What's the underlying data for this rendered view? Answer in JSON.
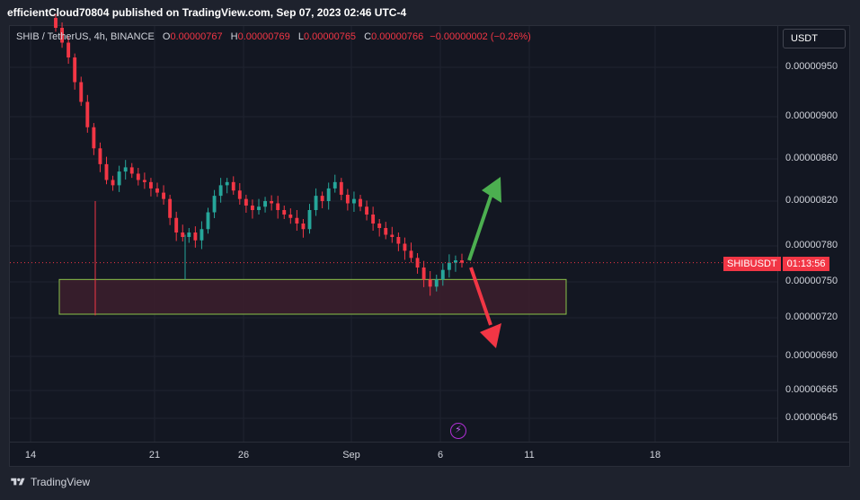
{
  "header": {
    "publisher": "efficientCloud70804 published on TradingView.com, Sep 07, 2023 02:46 UTC-4"
  },
  "legend": {
    "symbol": "SHIB / TetherUS, 4h, BINANCE",
    "o_label": "O",
    "o_value": "0.00000767",
    "h_label": "H",
    "h_value": "0.00000769",
    "l_label": "L",
    "l_value": "0.00000765",
    "c_label": "C",
    "c_value": "0.00000766",
    "change": "−0.00000002 (−0.26%)"
  },
  "currency": "USDT",
  "price_tag": {
    "symbol": "SHIBUSDT",
    "countdown": "01:13:56"
  },
  "footer": {
    "brand": "TradingView"
  },
  "colors": {
    "up": "#26a69a",
    "down": "#f23645",
    "zone_fill": "#3d1f2d",
    "zone_border": "#8bc34a",
    "arrow_up": "#4caf50",
    "arrow_down": "#f23645"
  },
  "chart_data": {
    "type": "candlestick",
    "y_axis_labels": [
      "0.00000950",
      "0.00000900",
      "0.00000860",
      "0.00000820",
      "0.00000780",
      "0.00000750",
      "0.00000720",
      "0.00000690",
      "0.00000665",
      "0.00000645"
    ],
    "x_axis_labels": [
      "14",
      "21",
      "26",
      "Sep",
      "6",
      "11",
      "18"
    ],
    "last_price": 7.66e-06,
    "support_zone": [
      7.23e-06,
      7.52e-06
    ],
    "close_series": [
      9.9e-06,
      9.75e-06,
      9.6e-06,
      9.35e-06,
      9.15e-06,
      8.9e-06,
      8.7e-06,
      8.55e-06,
      8.4e-06,
      8.35e-06,
      8.48e-06,
      8.52e-06,
      8.46e-06,
      8.4e-06,
      8.38e-06,
      8.32e-06,
      8.28e-06,
      8.22e-06,
      8.05e-06,
      7.92e-06,
      7.88e-06,
      7.92e-06,
      7.85e-06,
      7.95e-06,
      8.1e-06,
      8.25e-06,
      8.35e-06,
      8.38e-06,
      8.3e-06,
      8.22e-06,
      8.16e-06,
      8.12e-06,
      8.15e-06,
      8.2e-06,
      8.18e-06,
      8.12e-06,
      8.08e-06,
      8.05e-06,
      8e-06,
      7.95e-06,
      8.12e-06,
      8.25e-06,
      8.2e-06,
      8.32e-06,
      8.38e-06,
      8.26e-06,
      8.18e-06,
      8.22e-06,
      8.15e-06,
      8.08e-06,
      8e-06,
      7.96e-06,
      7.9e-06,
      7.88e-06,
      7.82e-06,
      7.76e-06,
      7.7e-06,
      7.62e-06,
      7.52e-06,
      7.46e-06,
      7.52e-06,
      7.6e-06,
      7.66e-06,
      7.68e-06,
      7.66e-06
    ]
  }
}
